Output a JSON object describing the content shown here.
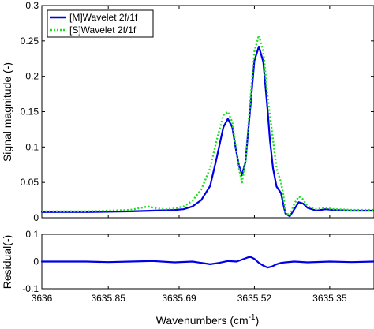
{
  "chart_data": [
    {
      "type": "line",
      "ylabel": "Signal magnitude (-)",
      "xlim": [
        3636.0,
        3635.25
      ],
      "x_reversed": true,
      "ylim": [
        0,
        0.3
      ],
      "yticks": [
        "0",
        "0.05",
        "0.1",
        "0.15",
        "0.2",
        "0.25",
        "0.3"
      ],
      "ytick_values": [
        0,
        0.05,
        0.1,
        0.15,
        0.2,
        0.25,
        0.3
      ],
      "legend": {
        "placement": "top-left"
      },
      "series": [
        {
          "name": "[M]Wavelet 2f/1f",
          "color": "#0000e6",
          "style": "solid",
          "x": [
            3636.0,
            3635.9,
            3635.8,
            3635.75,
            3635.7,
            3635.68,
            3635.66,
            3635.64,
            3635.62,
            3635.605,
            3635.59,
            3635.58,
            3635.57,
            3635.562,
            3635.555,
            3635.548,
            3635.54,
            3635.53,
            3635.52,
            3635.51,
            3635.5,
            3635.49,
            3635.485,
            3635.478,
            3635.47,
            3635.46,
            3635.455,
            3635.45,
            3635.44,
            3635.43,
            3635.42,
            3635.41,
            3635.4,
            3635.38,
            3635.36,
            3635.34,
            3635.3,
            3635.25
          ],
          "values": [
            0.008,
            0.008,
            0.009,
            0.01,
            0.011,
            0.012,
            0.016,
            0.025,
            0.045,
            0.085,
            0.128,
            0.14,
            0.128,
            0.097,
            0.074,
            0.06,
            0.08,
            0.15,
            0.222,
            0.242,
            0.22,
            0.15,
            0.11,
            0.07,
            0.044,
            0.035,
            0.02,
            0.006,
            0.002,
            0.012,
            0.022,
            0.02,
            0.014,
            0.01,
            0.012,
            0.011,
            0.01,
            0.01
          ]
        },
        {
          "name": "[S]Wavelet 2f/1f",
          "color": "#22dd22",
          "style": "dotted",
          "x": [
            3636.0,
            3635.9,
            3635.85,
            3635.8,
            3635.76,
            3635.74,
            3635.72,
            3635.7,
            3635.68,
            3635.66,
            3635.64,
            3635.62,
            3635.605,
            3635.59,
            3635.58,
            3635.57,
            3635.562,
            3635.555,
            3635.548,
            3635.54,
            3635.53,
            3635.52,
            3635.51,
            3635.5,
            3635.49,
            3635.48,
            3635.47,
            3635.46,
            3635.455,
            3635.45,
            3635.44,
            3635.43,
            3635.42,
            3635.41,
            3635.4,
            3635.38,
            3635.36,
            3635.34,
            3635.3,
            3635.25
          ],
          "values": [
            0.009,
            0.009,
            0.01,
            0.011,
            0.016,
            0.013,
            0.012,
            0.013,
            0.016,
            0.024,
            0.04,
            0.07,
            0.11,
            0.145,
            0.15,
            0.135,
            0.1,
            0.07,
            0.05,
            0.08,
            0.16,
            0.235,
            0.258,
            0.235,
            0.17,
            0.12,
            0.07,
            0.05,
            0.034,
            0.008,
            0.003,
            0.02,
            0.03,
            0.026,
            0.016,
            0.012,
            0.014,
            0.012,
            0.011,
            0.011
          ]
        }
      ]
    },
    {
      "type": "line",
      "xlabel": "Wavenumbers (cm",
      "xlabel_superscript": "-1",
      "xlabel_end": ")",
      "ylabel": "Residual(-)",
      "xlim": [
        3636.0,
        3635.25
      ],
      "x_reversed": true,
      "ylim": [
        -0.1,
        0.1
      ],
      "yticks": [
        "-0.1",
        "0",
        "0.1"
      ],
      "ytick_values": [
        -0.1,
        0,
        0.1
      ],
      "xticks": [
        "3636",
        "3635.85",
        "3635.69",
        "3635.52",
        "3635.35"
      ],
      "xtick_values": [
        3636.0,
        3635.85,
        3635.69,
        3635.52,
        3635.35
      ],
      "series": [
        {
          "name": "",
          "color": "#0000e6",
          "style": "solid",
          "x": [
            3636.0,
            3635.9,
            3635.85,
            3635.8,
            3635.75,
            3635.7,
            3635.66,
            3635.62,
            3635.6,
            3635.58,
            3635.56,
            3635.54,
            3635.53,
            3635.52,
            3635.51,
            3635.5,
            3635.49,
            3635.48,
            3635.47,
            3635.46,
            3635.45,
            3635.43,
            3635.4,
            3635.35,
            3635.3,
            3635.25
          ],
          "values": [
            0.0,
            0.0,
            -0.002,
            0.0,
            0.002,
            -0.003,
            0.0,
            -0.01,
            -0.005,
            0.002,
            0.0,
            0.012,
            0.018,
            0.01,
            -0.005,
            -0.015,
            -0.022,
            -0.018,
            -0.01,
            -0.005,
            -0.003,
            0.0,
            -0.003,
            0.0,
            -0.002,
            0.0
          ]
        }
      ]
    }
  ]
}
